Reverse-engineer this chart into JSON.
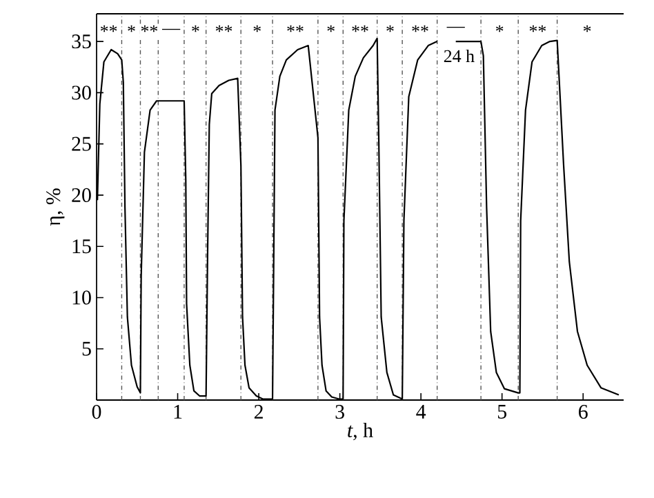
{
  "chart_data": {
    "type": "line",
    "xlabel": "*t*, h",
    "ylabel": "η, %",
    "xlim": [
      0,
      6.5
    ],
    "ylim": [
      0,
      37.7
    ],
    "xticks": [
      0,
      1,
      2,
      3,
      4,
      5,
      6
    ],
    "yticks": [
      5,
      10,
      15,
      20,
      25,
      30,
      35
    ],
    "marker": "none",
    "line_style": "solid",
    "series": [
      {
        "color": "#000000",
        "x": [
          0.01,
          0.04,
          0.09,
          0.18,
          0.26,
          0.31,
          0.33,
          0.35,
          0.38,
          0.43,
          0.5,
          0.54,
          0.55,
          0.59,
          0.66,
          0.74,
          0.76,
          1.08,
          1.1,
          1.11,
          1.15,
          1.2,
          1.27,
          1.35,
          1.37,
          1.39,
          1.42,
          1.51,
          1.63,
          1.74,
          1.78,
          1.8,
          1.83,
          1.88,
          1.97,
          2.05,
          2.17,
          2.19,
          2.2,
          2.26,
          2.34,
          2.48,
          2.61,
          2.73,
          2.75,
          2.78,
          2.83,
          2.9,
          2.99,
          3.04,
          3.05,
          3.11,
          3.19,
          3.29,
          3.41,
          3.46,
          3.48,
          3.51,
          3.58,
          3.66,
          3.77,
          3.79,
          3.85,
          3.96,
          4.09,
          4.2,
          4.3,
          4.43,
          4.74,
          4.77,
          4.81,
          4.86,
          4.93,
          5.03,
          5.2,
          5.22,
          5.23,
          5.29,
          5.37,
          5.49,
          5.59,
          5.68,
          5.69,
          5.76,
          5.83,
          5.93,
          6.05,
          6.22,
          6.44
        ],
        "values": [
          19.5,
          28.9,
          33.0,
          34.2,
          33.8,
          33.2,
          31.0,
          18.8,
          8.1,
          3.4,
          1.3,
          0.7,
          12.1,
          24.2,
          28.3,
          29.2,
          29.2,
          29.2,
          21.5,
          9.4,
          3.4,
          0.9,
          0.4,
          0.4,
          14.8,
          26.9,
          29.9,
          30.7,
          31.2,
          31.4,
          22.9,
          8.1,
          3.4,
          1.2,
          0.4,
          0.1,
          0.1,
          18.8,
          28.3,
          31.6,
          33.2,
          34.2,
          34.6,
          25.6,
          8.1,
          3.4,
          0.9,
          0.3,
          0.1,
          0.1,
          17.5,
          28.3,
          31.6,
          33.4,
          34.6,
          35.3,
          25.6,
          8.1,
          2.7,
          0.5,
          0.1,
          17.5,
          29.6,
          33.2,
          34.6,
          35.0,
          null,
          35.0,
          35.0,
          33.6,
          18.8,
          6.7,
          2.7,
          1.1,
          0.7,
          0.7,
          17.5,
          28.3,
          33.0,
          34.6,
          35.0,
          35.1,
          33.6,
          22.9,
          13.5,
          6.7,
          3.4,
          1.2,
          0.5
        ]
      }
    ],
    "ref_lines": [
      {
        "axis": "x",
        "value": 0.31,
        "color": "#555555",
        "line_style": "dashdot"
      },
      {
        "axis": "x",
        "value": 0.54,
        "color": "#555555",
        "line_style": "dashdot"
      },
      {
        "axis": "x",
        "value": 0.76,
        "color": "#555555",
        "line_style": "dashdot"
      },
      {
        "axis": "x",
        "value": 1.08,
        "color": "#555555",
        "line_style": "dashdot"
      },
      {
        "axis": "x",
        "value": 1.35,
        "color": "#555555",
        "line_style": "dashdot"
      },
      {
        "axis": "x",
        "value": 1.78,
        "color": "#555555",
        "line_style": "dashdot"
      },
      {
        "axis": "x",
        "value": 2.17,
        "color": "#555555",
        "line_style": "dashdot"
      },
      {
        "axis": "x",
        "value": 2.73,
        "color": "#555555",
        "line_style": "dashdot"
      },
      {
        "axis": "x",
        "value": 3.04,
        "color": "#555555",
        "line_style": "dashdot"
      },
      {
        "axis": "x",
        "value": 3.46,
        "color": "#555555",
        "line_style": "dashdot"
      },
      {
        "axis": "x",
        "value": 3.77,
        "color": "#555555",
        "line_style": "dashdot"
      },
      {
        "axis": "x",
        "value": 4.2,
        "color": "#555555",
        "line_style": "dashdot"
      },
      {
        "axis": "x",
        "value": 4.74,
        "color": "#555555",
        "line_style": "dashdot"
      },
      {
        "axis": "x",
        "value": 5.2,
        "color": "#555555",
        "line_style": "dashdot"
      },
      {
        "axis": "x",
        "value": 5.68,
        "color": "#555555",
        "line_style": "dashdot"
      }
    ],
    "annotations": [
      {
        "text": "**",
        "x": 0.15,
        "y": 36
      },
      {
        "text": "*",
        "x": 0.43,
        "y": 36
      },
      {
        "text": "**",
        "x": 0.65,
        "y": 36
      },
      {
        "text": "—",
        "x": 0.92,
        "y": 36
      },
      {
        "text": "*",
        "x": 1.22,
        "y": 36
      },
      {
        "text": "**",
        "x": 1.57,
        "y": 36
      },
      {
        "text": "*",
        "x": 1.98,
        "y": 36
      },
      {
        "text": "**",
        "x": 2.45,
        "y": 36
      },
      {
        "text": "*",
        "x": 2.89,
        "y": 36
      },
      {
        "text": "**",
        "x": 3.25,
        "y": 36
      },
      {
        "text": "*",
        "x": 3.62,
        "y": 36
      },
      {
        "text": "**",
        "x": 3.99,
        "y": 36
      },
      {
        "text": "—",
        "x": 4.43,
        "y": 36.2
      },
      {
        "text": "24 h",
        "x": 4.47,
        "y": 33.6
      },
      {
        "text": "*",
        "x": 4.97,
        "y": 36
      },
      {
        "text": "**",
        "x": 5.44,
        "y": 36
      },
      {
        "text": "*",
        "x": 6.05,
        "y": 36
      }
    ]
  }
}
